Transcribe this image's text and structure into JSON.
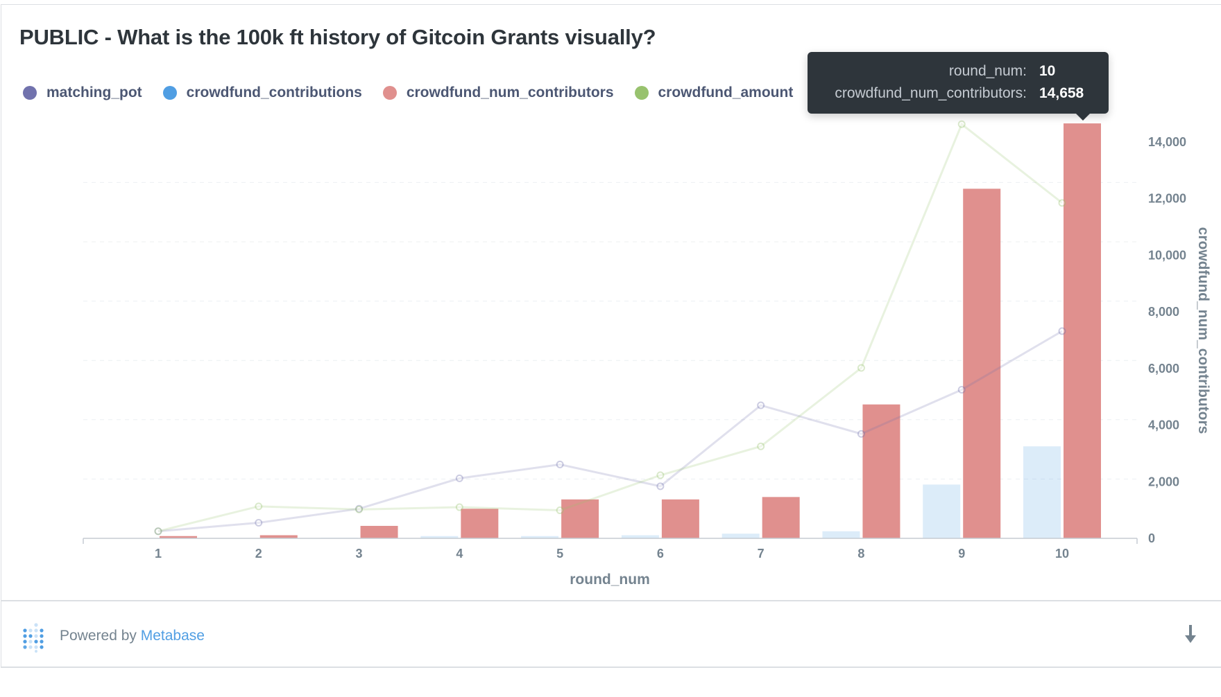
{
  "title": "PUBLIC - What is the 100k ft history of Gitcoin Grants visually?",
  "legend": [
    {
      "label": "matching_pot",
      "color": "#7172ad"
    },
    {
      "label": "crowdfund_contributions",
      "color": "#509ee3"
    },
    {
      "label": "crowdfund_num_contributors",
      "color": "#ef8c8c"
    },
    {
      "label": "crowdfund_amount",
      "color": "#98c26e"
    }
  ],
  "tooltip": {
    "rows": [
      {
        "key": "round_num:",
        "value": "10"
      },
      {
        "key": "crowdfund_num_contributors:",
        "value": "14,658"
      }
    ]
  },
  "chart_data": {
    "type": "bar",
    "title": "PUBLIC - What is the 100k ft history of Gitcoin Grants visually?",
    "xlabel": "round_num",
    "ylabel": "crowdfund_num_contributors",
    "categories": [
      "1",
      "2",
      "3",
      "4",
      "5",
      "6",
      "7",
      "8",
      "9",
      "10"
    ],
    "ylim": [
      0,
      15000
    ],
    "yticks": [
      0,
      2000,
      4000,
      6000,
      8000,
      10000,
      12000,
      14000
    ],
    "ytick_labels": [
      "0",
      "2,000",
      "4,000",
      "6,000",
      "8,000",
      "10,000",
      "12,000",
      "14,000"
    ],
    "y_axis_side": "right",
    "grid": true,
    "legend_position": "top-left",
    "series": [
      {
        "name": "matching_pot",
        "kind": "line",
        "color": "#7172ad",
        "values": [
          250,
          550,
          1045,
          2120,
          2610,
          1840,
          4700,
          3690,
          5250,
          7320
        ]
      },
      {
        "name": "crowdfund_contributions",
        "kind": "bar",
        "color": "#509ee3",
        "values": [
          0,
          0,
          20,
          80,
          80,
          110,
          165,
          250,
          1900,
          3250
        ]
      },
      {
        "name": "crowdfund_num_contributors",
        "kind": "bar",
        "color": "#e0908e",
        "values": [
          80,
          110,
          440,
          1045,
          1375,
          1375,
          1460,
          4730,
          12350,
          14658
        ]
      },
      {
        "name": "crowdfund_amount",
        "kind": "line",
        "color": "#98c26e",
        "values": [
          250,
          1130,
          1020,
          1100,
          990,
          2230,
          3250,
          6020,
          14630,
          11850
        ]
      }
    ]
  },
  "footer": {
    "powered_by": "Powered by",
    "brand": "Metabase",
    "download_icon": "arrow-down-icon",
    "logo_icon": "metabase-logo-icon"
  }
}
